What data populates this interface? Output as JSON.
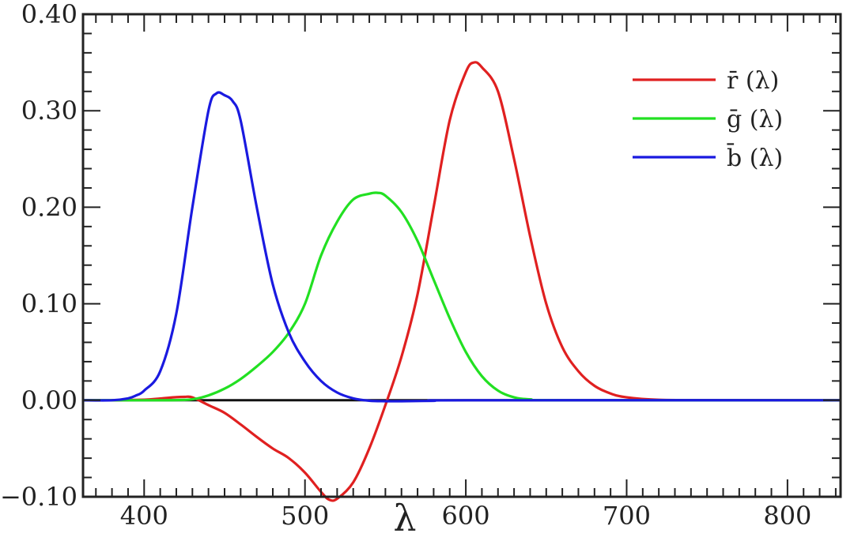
{
  "chart_data": {
    "type": "line",
    "title": "",
    "xlabel": "λ",
    "ylabel": "",
    "xlim": [
      362,
      833
    ],
    "ylim": [
      -0.1,
      0.4
    ],
    "grid": false,
    "legend_position": "top-right",
    "x_ticks": [
      {
        "value": 400,
        "label": "400"
      },
      {
        "value": 500,
        "label": "500"
      },
      {
        "value": 600,
        "label": "600"
      },
      {
        "value": 700,
        "label": "700"
      },
      {
        "value": 800,
        "label": "800"
      }
    ],
    "y_ticks": [
      {
        "value": 0.4,
        "label": "0.40"
      },
      {
        "value": 0.3,
        "label": "0.30"
      },
      {
        "value": 0.2,
        "label": "0.20"
      },
      {
        "value": 0.1,
        "label": "0.10"
      },
      {
        "value": 0.0,
        "label": "0.00"
      },
      {
        "value": -0.1,
        "label": "−0.10"
      }
    ],
    "series": [
      {
        "name": "r̄ (λ)",
        "color": "#e02020",
        "points": [
          [
            380,
            0
          ],
          [
            400,
            0.0006
          ],
          [
            410,
            0.0018
          ],
          [
            420,
            0.0032
          ],
          [
            425,
            0.0035
          ],
          [
            430,
            0.003
          ],
          [
            440,
            -0.005
          ],
          [
            450,
            -0.013
          ],
          [
            460,
            -0.025
          ],
          [
            470,
            -0.038
          ],
          [
            480,
            -0.05
          ],
          [
            490,
            -0.06
          ],
          [
            500,
            -0.075
          ],
          [
            510,
            -0.095
          ],
          [
            515,
            -0.103
          ],
          [
            520,
            -0.102
          ],
          [
            530,
            -0.085
          ],
          [
            540,
            -0.05
          ],
          [
            550,
            -0.005
          ],
          [
            560,
            0.045
          ],
          [
            570,
            0.11
          ],
          [
            580,
            0.2
          ],
          [
            590,
            0.29
          ],
          [
            600,
            0.34
          ],
          [
            605,
            0.35
          ],
          [
            610,
            0.345
          ],
          [
            620,
            0.32
          ],
          [
            630,
            0.25
          ],
          [
            640,
            0.17
          ],
          [
            650,
            0.1
          ],
          [
            660,
            0.055
          ],
          [
            670,
            0.03
          ],
          [
            680,
            0.015
          ],
          [
            690,
            0.007
          ],
          [
            700,
            0.003
          ],
          [
            720,
            0.0005
          ],
          [
            760,
            0
          ],
          [
            833,
            0
          ]
        ]
      },
      {
        "name": "ḡ (λ)",
        "color": "#22e022",
        "points": [
          [
            362,
            0
          ],
          [
            400,
            0
          ],
          [
            420,
            0.0002
          ],
          [
            430,
            0.001
          ],
          [
            440,
            0.005
          ],
          [
            450,
            0.012
          ],
          [
            460,
            0.022
          ],
          [
            470,
            0.035
          ],
          [
            480,
            0.05
          ],
          [
            490,
            0.07
          ],
          [
            500,
            0.1
          ],
          [
            510,
            0.15
          ],
          [
            520,
            0.185
          ],
          [
            530,
            0.208
          ],
          [
            540,
            0.214
          ],
          [
            545,
            0.215
          ],
          [
            550,
            0.212
          ],
          [
            560,
            0.195
          ],
          [
            570,
            0.165
          ],
          [
            580,
            0.125
          ],
          [
            590,
            0.085
          ],
          [
            600,
            0.05
          ],
          [
            610,
            0.025
          ],
          [
            620,
            0.01
          ],
          [
            630,
            0.003
          ],
          [
            640,
            0.001
          ],
          [
            660,
            0
          ],
          [
            833,
            0
          ]
        ]
      },
      {
        "name": "b̄ (λ)",
        "color": "#1a1ae0",
        "points": [
          [
            362,
            0
          ],
          [
            380,
            0
          ],
          [
            390,
            0.002
          ],
          [
            395,
            0.005
          ],
          [
            400,
            0.01
          ],
          [
            410,
            0.03
          ],
          [
            420,
            0.09
          ],
          [
            430,
            0.2
          ],
          [
            440,
            0.3
          ],
          [
            445,
            0.318
          ],
          [
            450,
            0.316
          ],
          [
            455,
            0.31
          ],
          [
            460,
            0.29
          ],
          [
            470,
            0.2
          ],
          [
            480,
            0.12
          ],
          [
            490,
            0.07
          ],
          [
            500,
            0.04
          ],
          [
            510,
            0.02
          ],
          [
            520,
            0.008
          ],
          [
            530,
            0.002
          ],
          [
            540,
            -0.0005
          ],
          [
            550,
            -0.001
          ],
          [
            560,
            -0.001
          ],
          [
            580,
            -0.0006
          ],
          [
            600,
            0
          ],
          [
            833,
            0
          ]
        ]
      }
    ]
  }
}
